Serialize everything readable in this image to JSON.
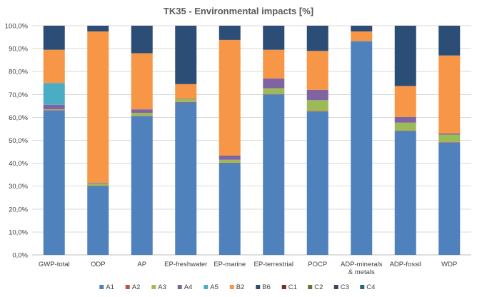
{
  "chart_data": {
    "type": "bar",
    "stacked": true,
    "title": "TK35 - Environmental impacts [%]",
    "xlabel": "",
    "ylabel": "",
    "ylim": [
      0,
      100
    ],
    "yticks": [
      "0,0%",
      "10,0%",
      "20,0%",
      "30,0%",
      "40,0%",
      "50,0%",
      "60,0%",
      "70,0%",
      "80,0%",
      "90,0%",
      "100,0%"
    ],
    "grid": true,
    "legend_position": "bottom",
    "categories": [
      [
        "GWP-total"
      ],
      [
        "ODP"
      ],
      [
        "AP"
      ],
      [
        "EP-freshwater"
      ],
      [
        "EP-marine"
      ],
      [
        "EP-terrestrial"
      ],
      [
        "POCP"
      ],
      [
        "ADP-minerals",
        "& metals"
      ],
      [
        "ADP-fossil"
      ],
      [
        "WDP"
      ]
    ],
    "series": [
      {
        "name": "A1",
        "color": "#4f81bd",
        "values": [
          63.0,
          30.0,
          60.5,
          66.5,
          40.0,
          70.0,
          62.5,
          93.0,
          54.0,
          49.0
        ]
      },
      {
        "name": "A2",
        "color": "#c0504d",
        "values": [
          0.2,
          0.2,
          0.2,
          0.2,
          0.2,
          0.2,
          0.3,
          0.1,
          0.2,
          0.2
        ]
      },
      {
        "name": "A3",
        "color": "#9bbb59",
        "values": [
          0.3,
          1.0,
          1.3,
          1.3,
          1.3,
          2.5,
          4.7,
          0.2,
          3.5,
          3.3
        ]
      },
      {
        "name": "A4",
        "color": "#8064a2",
        "values": [
          2.0,
          0.3,
          1.5,
          0.2,
          1.8,
          4.3,
          4.5,
          0.2,
          2.5,
          0.5
        ]
      },
      {
        "name": "A5",
        "color": "#4bacc6",
        "values": [
          9.5,
          0.0,
          0.0,
          0.0,
          0.0,
          0.0,
          0.0,
          0.0,
          0.0,
          0.0
        ]
      },
      {
        "name": "B2",
        "color": "#f79646",
        "values": [
          14.5,
          66.0,
          24.5,
          6.3,
          50.5,
          12.5,
          17.0,
          4.0,
          13.5,
          34.0
        ]
      },
      {
        "name": "B6",
        "color": "#2c4d75",
        "values": [
          10.5,
          2.5,
          12.0,
          25.5,
          6.2,
          10.5,
          11.0,
          2.5,
          26.3,
          13.0
        ]
      },
      {
        "name": "C1",
        "color": "#772c2a",
        "values": [
          0,
          0,
          0,
          0,
          0,
          0,
          0,
          0,
          0,
          0
        ]
      },
      {
        "name": "C2",
        "color": "#5f7530",
        "values": [
          0,
          0,
          0,
          0,
          0,
          0,
          0,
          0,
          0,
          0
        ]
      },
      {
        "name": "C3",
        "color": "#4d3b62",
        "values": [
          0,
          0,
          0,
          0,
          0,
          0,
          0,
          0,
          0,
          0
        ]
      },
      {
        "name": "C4",
        "color": "#276a7c",
        "values": [
          0,
          0,
          0,
          0,
          0,
          0,
          0,
          0,
          0,
          0
        ]
      }
    ]
  }
}
